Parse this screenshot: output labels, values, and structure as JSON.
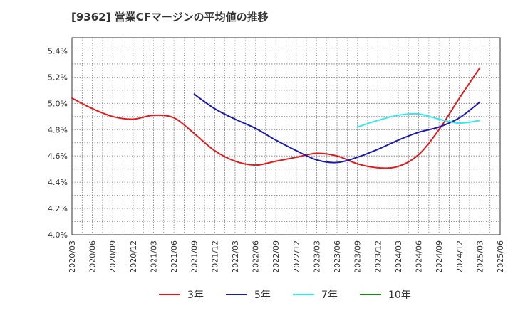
{
  "chart_data": {
    "type": "line",
    "title": "[9362]  営業CFマージンの平均値の推移",
    "xlabel": "",
    "ylabel": "",
    "ylim": [
      4.0,
      5.5
    ],
    "grid": true,
    "legend_position": "bottom",
    "x_ticks": [
      "2020/03",
      "2020/06",
      "2020/09",
      "2020/12",
      "2021/03",
      "2021/06",
      "2021/09",
      "2021/12",
      "2022/03",
      "2022/06",
      "2022/09",
      "2022/12",
      "2023/03",
      "2023/06",
      "2023/09",
      "2023/12",
      "2024/03",
      "2024/06",
      "2024/09",
      "2024/12",
      "2025/03",
      "2025/06"
    ],
    "y_ticks": [
      "4.0%",
      "4.2%",
      "4.4%",
      "4.6%",
      "4.8%",
      "5.0%",
      "5.2%",
      "5.4%"
    ],
    "series": [
      {
        "name": "3年",
        "color": "#e31a1c",
        "points": [
          [
            "2020/03",
            5.04
          ],
          [
            "2020/06",
            4.96
          ],
          [
            "2020/09",
            4.9
          ],
          [
            "2020/12",
            4.88
          ],
          [
            "2021/03",
            4.91
          ],
          [
            "2021/06",
            4.89
          ],
          [
            "2021/09",
            4.77
          ],
          [
            "2021/12",
            4.64
          ],
          [
            "2022/03",
            4.56
          ],
          [
            "2022/06",
            4.53
          ],
          [
            "2022/09",
            4.56
          ],
          [
            "2022/12",
            4.59
          ],
          [
            "2023/03",
            4.62
          ],
          [
            "2023/06",
            4.6
          ],
          [
            "2023/09",
            4.54
          ],
          [
            "2023/12",
            4.51
          ],
          [
            "2024/03",
            4.52
          ],
          [
            "2024/06",
            4.61
          ],
          [
            "2024/09",
            4.8
          ],
          [
            "2024/12",
            5.04
          ],
          [
            "2025/03",
            5.27
          ]
        ]
      },
      {
        "name": "5年",
        "color": "#1a1ab4",
        "points": [
          [
            "2021/09",
            5.07
          ],
          [
            "2021/12",
            4.96
          ],
          [
            "2022/03",
            4.88
          ],
          [
            "2022/06",
            4.81
          ],
          [
            "2022/09",
            4.72
          ],
          [
            "2022/12",
            4.64
          ],
          [
            "2023/03",
            4.57
          ],
          [
            "2023/06",
            4.55
          ],
          [
            "2023/09",
            4.59
          ],
          [
            "2023/12",
            4.65
          ],
          [
            "2024/03",
            4.72
          ],
          [
            "2024/06",
            4.78
          ],
          [
            "2024/09",
            4.82
          ],
          [
            "2024/12",
            4.89
          ],
          [
            "2025/03",
            5.01
          ]
        ]
      },
      {
        "name": "7年",
        "color": "#33e8f0",
        "points": [
          [
            "2023/09",
            4.82
          ],
          [
            "2023/12",
            4.87
          ],
          [
            "2024/03",
            4.91
          ],
          [
            "2024/06",
            4.92
          ],
          [
            "2024/09",
            4.88
          ],
          [
            "2024/12",
            4.85
          ],
          [
            "2025/03",
            4.87
          ]
        ]
      },
      {
        "name": "10年",
        "color": "#1e8a1e",
        "points": []
      }
    ]
  }
}
